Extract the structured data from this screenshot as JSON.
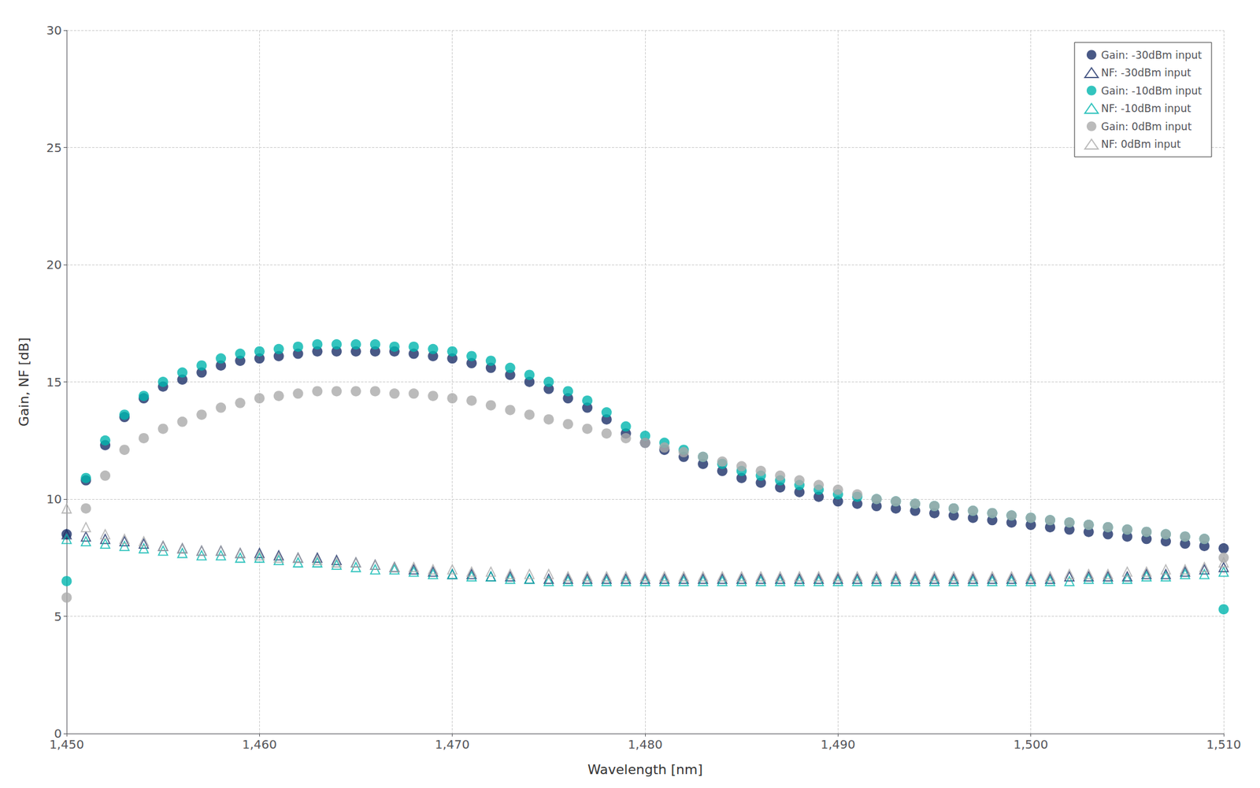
{
  "chart_data": {
    "type": "scatter",
    "xlabel": "Wavelength [nm]",
    "ylabel": "Gain, NF [dB]",
    "x": [
      1450,
      1451,
      1452,
      1453,
      1454,
      1455,
      1456,
      1457,
      1458,
      1459,
      1460,
      1461,
      1462,
      1463,
      1464,
      1465,
      1466,
      1467,
      1468,
      1469,
      1470,
      1471,
      1472,
      1473,
      1474,
      1475,
      1476,
      1477,
      1478,
      1479,
      1480,
      1481,
      1482,
      1483,
      1484,
      1485,
      1486,
      1487,
      1488,
      1489,
      1490,
      1491,
      1492,
      1493,
      1494,
      1495,
      1496,
      1497,
      1498,
      1499,
      1500,
      1501,
      1502,
      1503,
      1504,
      1505,
      1506,
      1507,
      1508,
      1509,
      1510
    ],
    "series": [
      {
        "name": "Gain: -30dBm input",
        "color": "#1c3068",
        "marker": "circle",
        "values": [
          8.5,
          10.8,
          12.3,
          13.5,
          14.3,
          14.8,
          15.1,
          15.4,
          15.7,
          15.9,
          16.0,
          16.1,
          16.2,
          16.3,
          16.3,
          16.3,
          16.3,
          16.3,
          16.2,
          16.1,
          16.0,
          15.8,
          15.6,
          15.3,
          15.0,
          14.7,
          14.3,
          13.9,
          13.4,
          12.8,
          12.4,
          12.1,
          11.8,
          11.5,
          11.2,
          10.9,
          10.7,
          10.5,
          10.3,
          10.1,
          9.9,
          9.8,
          9.7,
          9.6,
          9.5,
          9.4,
          9.3,
          9.2,
          9.1,
          9.0,
          8.9,
          8.8,
          8.7,
          8.6,
          8.5,
          8.4,
          8.3,
          8.2,
          8.1,
          8.0,
          7.9
        ]
      },
      {
        "name": "NF: -30dBm input",
        "color": "#1c3068",
        "marker": "triangle-open",
        "values": [
          8.5,
          8.4,
          8.3,
          8.2,
          8.1,
          8.0,
          7.9,
          7.8,
          7.8,
          7.7,
          7.7,
          7.6,
          7.5,
          7.5,
          7.4,
          7.3,
          7.2,
          7.1,
          7.0,
          6.9,
          6.8,
          6.8,
          6.7,
          6.7,
          6.6,
          6.6,
          6.6,
          6.6,
          6.6,
          6.6,
          6.6,
          6.6,
          6.6,
          6.6,
          6.6,
          6.6,
          6.6,
          6.6,
          6.6,
          6.6,
          6.6,
          6.6,
          6.6,
          6.6,
          6.6,
          6.6,
          6.6,
          6.6,
          6.6,
          6.6,
          6.6,
          6.6,
          6.7,
          6.7,
          6.7,
          6.7,
          6.8,
          6.8,
          6.9,
          7.0,
          7.1
        ]
      },
      {
        "name": "Gain: -10dBm input",
        "color": "#00b5ae",
        "marker": "circle",
        "values": [
          6.5,
          10.9,
          12.5,
          13.6,
          14.4,
          15.0,
          15.4,
          15.7,
          16.0,
          16.2,
          16.3,
          16.4,
          16.5,
          16.6,
          16.6,
          16.6,
          16.6,
          16.5,
          16.5,
          16.4,
          16.3,
          16.1,
          15.9,
          15.6,
          15.3,
          15.0,
          14.6,
          14.2,
          13.7,
          13.1,
          12.7,
          12.4,
          12.1,
          11.8,
          11.5,
          11.2,
          11.0,
          10.8,
          10.6,
          10.4,
          10.2,
          10.1,
          10.0,
          9.9,
          9.8,
          9.7,
          9.6,
          9.5,
          9.4,
          9.3,
          9.2,
          9.1,
          9.0,
          8.9,
          8.8,
          8.7,
          8.6,
          8.5,
          8.4,
          8.3,
          5.3
        ]
      },
      {
        "name": "NF: -10dBm input",
        "color": "#00b5ae",
        "marker": "triangle-open",
        "values": [
          8.3,
          8.2,
          8.1,
          8.0,
          7.9,
          7.8,
          7.7,
          7.6,
          7.6,
          7.5,
          7.5,
          7.4,
          7.3,
          7.3,
          7.2,
          7.1,
          7.0,
          7.0,
          6.9,
          6.8,
          6.8,
          6.7,
          6.7,
          6.6,
          6.6,
          6.5,
          6.5,
          6.5,
          6.5,
          6.5,
          6.5,
          6.5,
          6.5,
          6.5,
          6.5,
          6.5,
          6.5,
          6.5,
          6.5,
          6.5,
          6.5,
          6.5,
          6.5,
          6.5,
          6.5,
          6.5,
          6.5,
          6.5,
          6.5,
          6.5,
          6.5,
          6.5,
          6.5,
          6.6,
          6.6,
          6.6,
          6.7,
          6.7,
          6.8,
          6.8,
          6.9
        ]
      },
      {
        "name": "Gain: 0dBm input",
        "color": "#aaaaaa",
        "marker": "circle",
        "values": [
          5.8,
          9.6,
          11.0,
          12.1,
          12.6,
          13.0,
          13.3,
          13.6,
          13.9,
          14.1,
          14.3,
          14.4,
          14.5,
          14.6,
          14.6,
          14.6,
          14.6,
          14.5,
          14.5,
          14.4,
          14.3,
          14.2,
          14.0,
          13.8,
          13.6,
          13.4,
          13.2,
          13.0,
          12.8,
          12.6,
          12.4,
          12.2,
          12.0,
          11.8,
          11.6,
          11.4,
          11.2,
          11.0,
          10.8,
          10.6,
          10.4,
          10.2,
          10.0,
          9.9,
          9.8,
          9.7,
          9.6,
          9.5,
          9.4,
          9.3,
          9.2,
          9.1,
          9.0,
          8.9,
          8.8,
          8.7,
          8.6,
          8.5,
          8.4,
          8.3,
          7.5
        ]
      },
      {
        "name": "NF: 0dBm input",
        "color": "#aaaaaa",
        "marker": "triangle-open",
        "values": [
          9.6,
          8.8,
          8.5,
          8.3,
          8.2,
          8.0,
          7.9,
          7.8,
          7.8,
          7.7,
          7.6,
          7.5,
          7.5,
          7.4,
          7.3,
          7.3,
          7.2,
          7.1,
          7.1,
          7.0,
          7.0,
          6.9,
          6.9,
          6.8,
          6.8,
          6.8,
          6.7,
          6.7,
          6.7,
          6.7,
          6.7,
          6.7,
          6.7,
          6.7,
          6.7,
          6.7,
          6.7,
          6.7,
          6.7,
          6.7,
          6.7,
          6.7,
          6.7,
          6.7,
          6.7,
          6.7,
          6.7,
          6.7,
          6.7,
          6.7,
          6.7,
          6.7,
          6.8,
          6.8,
          6.8,
          6.9,
          6.9,
          7.0,
          7.0,
          7.1,
          7.3
        ]
      }
    ],
    "xlim": [
      1450,
      1510
    ],
    "ylim": [
      0,
      30
    ],
    "xticks": [
      1450,
      1460,
      1470,
      1480,
      1490,
      1500,
      1510
    ],
    "yticks": [
      0,
      5,
      10,
      15,
      20,
      25,
      30
    ],
    "grid": true,
    "legend": "upper right"
  }
}
